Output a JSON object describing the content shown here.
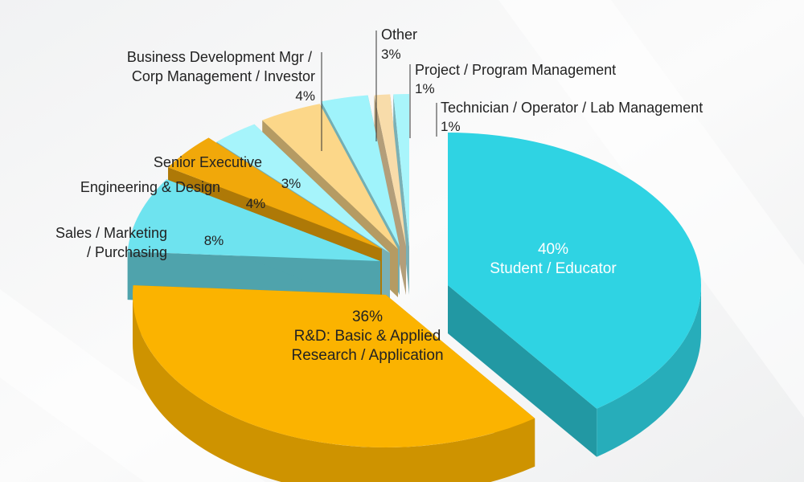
{
  "chart_data": {
    "type": "pie",
    "style": "3d-exploded",
    "slices": [
      {
        "label": "Student / Educator",
        "value": 40,
        "pct_text": "40%",
        "color": "#2fd3e3"
      },
      {
        "label": "R&D: Basic & Applied Research / Application",
        "value": 36,
        "pct_text": "36%",
        "color": "#fbb300"
      },
      {
        "label": "Sales / Marketing / Purchasing",
        "value": 8,
        "pct_text": "8%",
        "color": "#6ee3ef"
      },
      {
        "label": "Engineering & Design",
        "value": 4,
        "pct_text": "4%",
        "color": "#f1a80a"
      },
      {
        "label": "Senior Executive",
        "value": 3,
        "pct_text": "3%",
        "color": "#a6f4fb"
      },
      {
        "label": "Business Development Mgr / Corp Management / Investor",
        "value": 4,
        "pct_text": "4%",
        "color": "#fcd789"
      },
      {
        "label": "Other",
        "value": 3,
        "pct_text": "3%",
        "color": "#9ff3fb"
      },
      {
        "label": "Project / Program Management",
        "value": 1,
        "pct_text": "1%",
        "color": "#f8dcaa"
      },
      {
        "label": "Technician / Operator / Lab Management",
        "value": 1,
        "pct_text": "1%",
        "color": "#a9f5fb"
      }
    ]
  },
  "labels": {
    "student": {
      "pct": "40%",
      "name": "Student / Educator"
    },
    "rd": {
      "pct": "36%",
      "line1": "R&D: Basic & Applied",
      "line2": "Research / Application"
    },
    "sales": {
      "line1": "Sales / Marketing",
      "line2": "/ Purchasing",
      "pct": "8%"
    },
    "engineering": {
      "name": "Engineering & Design",
      "pct": "4%"
    },
    "senior": {
      "name": "Senior Executive",
      "pct": "3%"
    },
    "bizdev": {
      "line1": "Business Development Mgr /",
      "line2": "Corp Management / Investor",
      "pct": "4%"
    },
    "other": {
      "name": "Other",
      "pct": "3%"
    },
    "project": {
      "name": "Project / Program Management",
      "pct": "1%"
    },
    "technician": {
      "name": "Technician / Operator / Lab Management",
      "pct": "1%"
    }
  }
}
